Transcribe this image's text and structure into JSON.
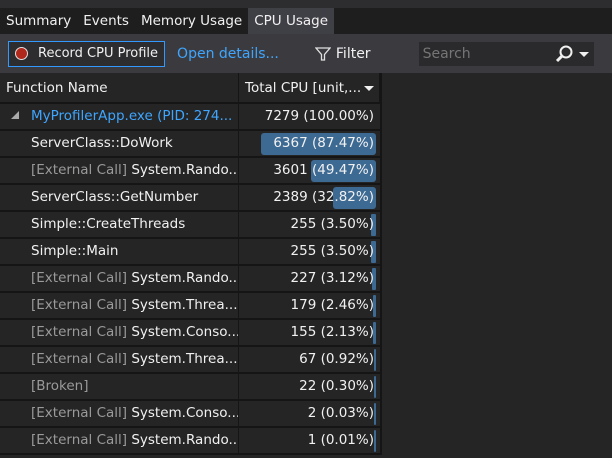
{
  "tabs": [
    "Summary",
    "Events",
    "Memory Usage",
    "CPU Usage"
  ],
  "active_tab": "CPU Usage",
  "toolbar": {
    "record_label": "Record CPU Profile",
    "open_details": "Open details...",
    "filter_label": "Filter",
    "search_placeholder": "Search"
  },
  "columns": {
    "name": "Function Name",
    "total": "Total CPU [unit,..."
  },
  "colors": {
    "bar": "#3d6a93",
    "link": "#3ea6ff",
    "record": "#b0271b"
  },
  "rows": [
    {
      "prefix": "",
      "name": "MyProfilerApp.exe (PID: 274...",
      "value": "7279 (100.00%)",
      "pct": 100,
      "root": true
    },
    {
      "prefix": "",
      "name": "ServerClass::DoWork",
      "value": "6367 (87.47%)",
      "pct": 87.47
    },
    {
      "prefix": "[External Call]",
      "name": "System.Rando...",
      "value": "3601 (49.47%)",
      "pct": 49.47
    },
    {
      "prefix": "",
      "name": "ServerClass::GetNumber",
      "value": "2389 (32.82%)",
      "pct": 32.82
    },
    {
      "prefix": "",
      "name": "Simple::CreateThreads",
      "value": "255 (3.50%)",
      "pct": 3.5
    },
    {
      "prefix": "",
      "name": "Simple::Main",
      "value": "255 (3.50%)",
      "pct": 3.5
    },
    {
      "prefix": "[External Call]",
      "name": "System.Rando...",
      "value": "227 (3.12%)",
      "pct": 3.12
    },
    {
      "prefix": "[External Call]",
      "name": "System.Threa...",
      "value": "179 (2.46%)",
      "pct": 2.46
    },
    {
      "prefix": "[External Call]",
      "name": "System.Conso...",
      "value": "155 (2.13%)",
      "pct": 2.13
    },
    {
      "prefix": "[External Call]",
      "name": "System.Threa...",
      "value": "67 (0.92%)",
      "pct": 0.92
    },
    {
      "prefix": "[Broken]",
      "name": "",
      "value": "22 (0.30%)",
      "pct": 0.3
    },
    {
      "prefix": "[External Call]",
      "name": "System.Conso...",
      "value": "2 (0.03%)",
      "pct": 0.03
    },
    {
      "prefix": "[External Call]",
      "name": "System.Rando...",
      "value": "1 (0.01%)",
      "pct": 0.01
    }
  ]
}
